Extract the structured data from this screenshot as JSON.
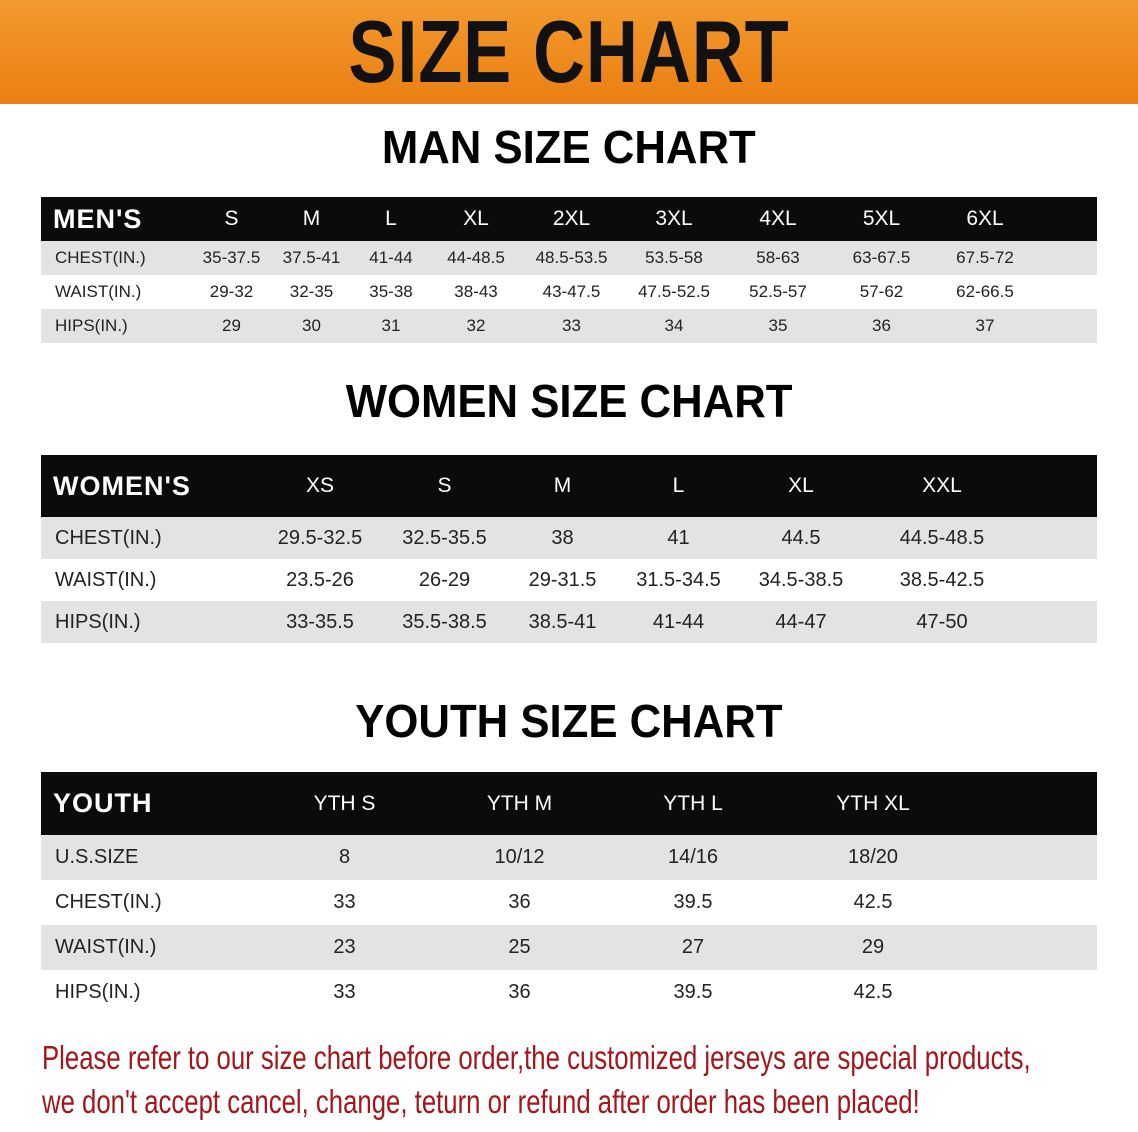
{
  "banner_title": "SIZE CHART",
  "men": {
    "title": "MAN SIZE CHART",
    "header": [
      "MEN'S",
      "S",
      "M",
      "L",
      "XL",
      "2XL",
      "3XL",
      "4XL",
      "5XL",
      "6XL"
    ],
    "rows": [
      [
        "CHEST(IN.)",
        "35-37.5",
        "37.5-41",
        "41-44",
        "44-48.5",
        "48.5-53.5",
        "53.5-58",
        "58-63",
        "63-67.5",
        "67.5-72"
      ],
      [
        "WAIST(IN.)",
        "29-32",
        "32-35",
        "35-38",
        "38-43",
        "43-47.5",
        "47.5-52.5",
        "52.5-57",
        "57-62",
        "62-66.5"
      ],
      [
        "HIPS(IN.)",
        "29",
        "30",
        "31",
        "32",
        "33",
        "34",
        "35",
        "36",
        "37"
      ]
    ]
  },
  "women": {
    "title": "WOMEN SIZE CHART",
    "header": [
      "WOMEN'S",
      "XS",
      "S",
      "M",
      "L",
      "XL",
      "XXL"
    ],
    "rows": [
      [
        "CHEST(IN.)",
        "29.5-32.5",
        "32.5-35.5",
        "38",
        "41",
        "44.5",
        "44.5-48.5"
      ],
      [
        "WAIST(IN.)",
        "23.5-26",
        "26-29",
        "29-31.5",
        "31.5-34.5",
        "34.5-38.5",
        "38.5-42.5"
      ],
      [
        "HIPS(IN.)",
        "33-35.5",
        "35.5-38.5",
        "38.5-41",
        "41-44",
        "44-47",
        "47-50"
      ]
    ]
  },
  "youth": {
    "title": "YOUTH SIZE CHART",
    "header": [
      "YOUTH",
      "YTH S",
      "YTH M",
      "YTH L",
      "YTH XL"
    ],
    "rows": [
      [
        "U.S.SIZE",
        "8",
        "10/12",
        "14/16",
        "18/20"
      ],
      [
        "CHEST(IN.)",
        "33",
        "36",
        "39.5",
        "42.5"
      ],
      [
        "WAIST(IN.)",
        "23",
        "25",
        "27",
        "29"
      ],
      [
        "HIPS(IN.)",
        "33",
        "36",
        "39.5",
        "42.5"
      ]
    ]
  },
  "note": {
    "line1": "Please refer to our size chart before order,the customized jerseys are special products,",
    "line2": "we don't accept cancel, change, teturn or refund after order has been placed!"
  },
  "colors": {
    "banner": "#ee8a1f",
    "header_row": "#0b0b0b",
    "stripe": "#e3e3e3",
    "note": "#a3161a"
  }
}
